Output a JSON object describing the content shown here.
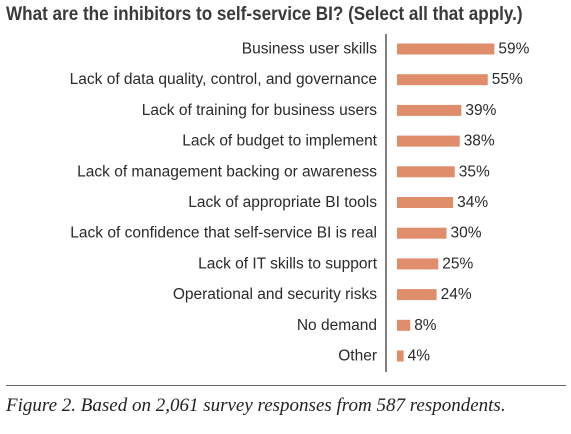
{
  "chart_data": {
    "type": "bar",
    "orientation": "horizontal",
    "title": "What are the inhibitors to self-service BI? (Select all that apply.)",
    "categories": [
      "Business user skills",
      "Lack of data quality, control, and governance",
      "Lack of training for business users",
      "Lack of budget to implement",
      "Lack of management backing or awareness",
      "Lack of appropriate BI tools",
      "Lack of confidence that self-service BI is real",
      "Lack of IT skills to support",
      "Operational and security risks",
      "No demand",
      "Other"
    ],
    "values": [
      59,
      55,
      39,
      38,
      35,
      34,
      30,
      25,
      24,
      8,
      4
    ],
    "value_labels": [
      "59%",
      "55%",
      "39%",
      "38%",
      "35%",
      "34%",
      "30%",
      "25%",
      "24%",
      "8%",
      "4%"
    ],
    "unit": "%",
    "xlim": [
      0,
      100
    ],
    "grid": false,
    "bar_color": "#e08d6b",
    "axis_color": "#555555"
  },
  "caption": "Figure 2. Based on 2,061 survey responses from 587 respondents."
}
